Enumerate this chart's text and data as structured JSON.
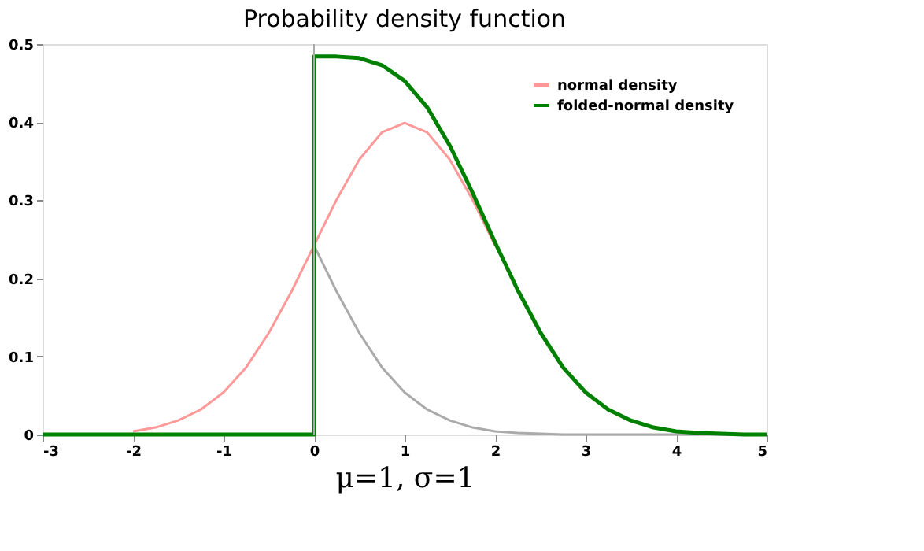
{
  "chart_data": {
    "type": "line",
    "title": "Probability density function",
    "xlabel": "μ=1, σ=1",
    "x": [
      -2,
      -1.75,
      -1.5,
      -1.25,
      -1,
      -0.75,
      -0.5,
      -0.25,
      0,
      0.25,
      0.5,
      0.75,
      1,
      1.25,
      1.5,
      1.75,
      2
    ],
    "series": [
      {
        "name": "normal density",
        "color": "#ff9999",
        "values": [
          0.004,
          0.009,
          0.018,
          0.032,
          0.054,
          0.086,
          0.13,
          0.183,
          0.242,
          0.301,
          0.352,
          0.387,
          0.399,
          0.387,
          0.352,
          0.301,
          0.242
        ]
      },
      {
        "color": "#aaaaaa",
        "x": [
          0,
          0.25,
          0.5,
          0.75,
          1,
          1.25,
          1.5,
          1.75,
          2,
          2.25,
          2.5,
          2.75,
          3,
          4,
          5
        ],
        "values": [
          0.242,
          0.183,
          0.13,
          0.086,
          0.054,
          0.032,
          0.018,
          0.009,
          0.004,
          0.002,
          0.001,
          0.0,
          0.0,
          0.0,
          0.0
        ]
      },
      {
        "name": "folded-normal density",
        "color": "#008000",
        "x": [
          -3,
          0,
          0,
          0.25,
          0.5,
          0.75,
          1,
          1.25,
          1.5,
          1.75,
          2,
          2.25,
          2.5,
          2.75,
          3,
          3.25,
          3.5,
          3.75,
          4,
          4.25,
          4.5,
          4.75,
          5
        ],
        "values": [
          0,
          0,
          0.484,
          0.484,
          0.482,
          0.473,
          0.453,
          0.419,
          0.37,
          0.31,
          0.246,
          0.185,
          0.131,
          0.086,
          0.054,
          0.032,
          0.018,
          0.009,
          0.004,
          0.002,
          0.001,
          0.0,
          0.0
        ]
      }
    ],
    "xlim": [
      -3,
      5
    ],
    "xticks": [
      -3,
      -2,
      -1,
      0,
      1,
      2,
      3,
      4,
      5
    ],
    "ylim": [
      0,
      0.5
    ],
    "yticks": [
      0,
      0.1,
      0.2,
      0.3,
      0.4,
      0.5
    ],
    "legend": "top right",
    "line_style": "solid",
    "ref_lines": [
      {
        "axis": "x",
        "value": 0,
        "color": "#aaaaaa"
      }
    ]
  }
}
